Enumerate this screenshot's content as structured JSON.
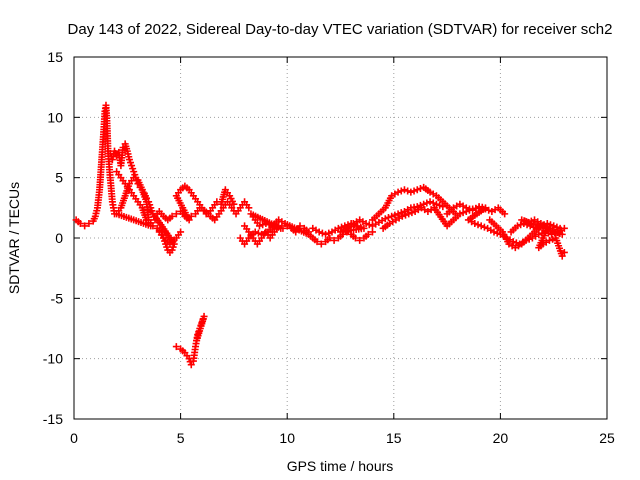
{
  "chart_data": {
    "type": "scatter",
    "title": "Day 143 of 2022, Sidereal Day-to-day VTEC variation (SDTVAR) for receiver sch2",
    "xlabel": "GPS time / hours",
    "ylabel": "SDTVAR / TECUs",
    "xlim": [
      0,
      25
    ],
    "ylim": [
      -15,
      15
    ],
    "xticks": [
      0,
      5,
      10,
      15,
      20,
      25
    ],
    "yticks": [
      -15,
      -10,
      -5,
      0,
      5,
      10,
      15
    ],
    "grid": true,
    "marker": "plus",
    "color": "#ff0000",
    "series": [
      {
        "name": "sch2",
        "points": [
          [
            0.1,
            1.5
          ],
          [
            0.3,
            1.2
          ],
          [
            0.5,
            1.0
          ],
          [
            0.7,
            1.2
          ],
          [
            0.9,
            1.4
          ],
          [
            1.0,
            1.8
          ],
          [
            1.1,
            2.5
          ],
          [
            1.2,
            4.0
          ],
          [
            1.3,
            6.5
          ],
          [
            1.4,
            9.0
          ],
          [
            1.45,
            10.5
          ],
          [
            1.5,
            11.0
          ],
          [
            1.55,
            9.5
          ],
          [
            1.6,
            7.0
          ],
          [
            1.7,
            5.0
          ],
          [
            1.8,
            3.0
          ],
          [
            1.9,
            2.0
          ],
          [
            1.7,
            7.0
          ],
          [
            1.8,
            6.5
          ],
          [
            1.9,
            7.2
          ],
          [
            2.0,
            6.8
          ],
          [
            2.1,
            7.1
          ],
          [
            2.2,
            6.0
          ],
          [
            2.3,
            7.5
          ],
          [
            2.4,
            7.8
          ],
          [
            2.5,
            7.2
          ],
          [
            2.6,
            6.5
          ],
          [
            2.7,
            6.0
          ],
          [
            2.8,
            5.5
          ],
          [
            2.9,
            5.0
          ],
          [
            3.0,
            4.5
          ],
          [
            3.1,
            4.2
          ],
          [
            3.2,
            4.0
          ],
          [
            3.3,
            3.7
          ],
          [
            3.4,
            3.3
          ],
          [
            3.5,
            3.0
          ],
          [
            3.6,
            2.5
          ],
          [
            3.7,
            2.0
          ],
          [
            3.8,
            1.5
          ],
          [
            2.0,
            5.5
          ],
          [
            2.2,
            5.0
          ],
          [
            2.4,
            4.5
          ],
          [
            2.6,
            4.0
          ],
          [
            2.8,
            3.5
          ],
          [
            3.0,
            3.0
          ],
          [
            3.2,
            2.5
          ],
          [
            3.4,
            1.5
          ],
          [
            3.6,
            1.0
          ],
          [
            2.0,
            2.0
          ],
          [
            2.2,
            2.5
          ],
          [
            2.4,
            3.5
          ],
          [
            2.6,
            4.5
          ],
          [
            2.8,
            5.0
          ],
          [
            3.0,
            4.8
          ],
          [
            3.2,
            4.0
          ],
          [
            3.4,
            3.0
          ],
          [
            3.5,
            1.5
          ],
          [
            3.7,
            1.0
          ],
          [
            3.9,
            0.8
          ],
          [
            4.1,
            0.5
          ],
          [
            4.2,
            0.0
          ],
          [
            4.3,
            -0.5
          ],
          [
            4.4,
            -1.0
          ],
          [
            4.5,
            -1.2
          ],
          [
            4.6,
            -1.0
          ],
          [
            4.7,
            -0.5
          ],
          [
            3.8,
            1.8
          ],
          [
            4.0,
            2.2
          ],
          [
            4.2,
            1.8
          ],
          [
            4.4,
            1.5
          ],
          [
            4.6,
            1.8
          ],
          [
            4.8,
            2.0
          ],
          [
            5.0,
            2.2
          ],
          [
            5.2,
            1.8
          ],
          [
            5.4,
            1.5
          ],
          [
            4.8,
            3.5
          ],
          [
            5.0,
            4.0
          ],
          [
            5.2,
            4.3
          ],
          [
            5.4,
            4.0
          ],
          [
            5.6,
            3.5
          ],
          [
            5.8,
            3.0
          ],
          [
            6.0,
            2.5
          ],
          [
            6.2,
            2.0
          ],
          [
            6.4,
            1.8
          ],
          [
            6.6,
            1.5
          ],
          [
            6.8,
            2.0
          ],
          [
            7.0,
            2.5
          ],
          [
            7.2,
            3.0
          ],
          [
            7.4,
            2.5
          ],
          [
            7.6,
            2.0
          ],
          [
            7.8,
            2.5
          ],
          [
            8.0,
            3.0
          ],
          [
            8.2,
            2.5
          ],
          [
            5.5,
            1.8
          ],
          [
            5.7,
            2.0
          ],
          [
            5.9,
            2.5
          ],
          [
            6.1,
            2.3
          ],
          [
            6.3,
            2.0
          ],
          [
            6.5,
            2.5
          ],
          [
            6.7,
            3.0
          ],
          [
            6.9,
            2.8
          ],
          [
            7.1,
            4.0
          ],
          [
            7.3,
            3.5
          ],
          [
            7.5,
            2.8
          ],
          [
            4.0,
            0.5
          ],
          [
            4.2,
            0.0
          ],
          [
            4.5,
            -0.5
          ],
          [
            4.8,
            0.0
          ],
          [
            5.0,
            0.5
          ],
          [
            8.0,
            1.0
          ],
          [
            8.2,
            0.5
          ],
          [
            8.4,
            0.0
          ],
          [
            8.6,
            -0.5
          ],
          [
            8.8,
            0.0
          ],
          [
            9.0,
            0.5
          ],
          [
            9.2,
            0.0
          ],
          [
            9.4,
            0.5
          ],
          [
            9.6,
            1.0
          ],
          [
            9.8,
            0.8
          ],
          [
            10.0,
            1.0
          ],
          [
            10.2,
            0.8
          ],
          [
            10.4,
            0.5
          ],
          [
            10.6,
            1.0
          ],
          [
            10.8,
            0.8
          ],
          [
            11.0,
            0.5
          ],
          [
            7.8,
            0.0
          ],
          [
            8.0,
            -0.5
          ],
          [
            8.2,
            0.0
          ],
          [
            8.5,
            0.5
          ],
          [
            8.8,
            0.3
          ],
          [
            9.1,
            0.5
          ],
          [
            9.4,
            1.0
          ],
          [
            9.7,
            0.8
          ],
          [
            8.3,
            2.0
          ],
          [
            8.5,
            1.5
          ],
          [
            8.7,
            1.0
          ],
          [
            9.0,
            1.2
          ],
          [
            9.3,
            1.0
          ],
          [
            9.6,
            1.5
          ],
          [
            9.9,
            1.2
          ],
          [
            11.0,
            0.3
          ],
          [
            11.2,
            0.0
          ],
          [
            11.4,
            -0.3
          ],
          [
            11.6,
            -0.5
          ],
          [
            11.8,
            -0.3
          ],
          [
            12.0,
            0.0
          ],
          [
            12.2,
            -0.2
          ],
          [
            12.4,
            0.0
          ],
          [
            12.6,
            0.3
          ],
          [
            12.8,
            0.5
          ],
          [
            13.0,
            0.3
          ],
          [
            13.2,
            0.0
          ],
          [
            13.4,
            -0.2
          ],
          [
            13.6,
            0.0
          ],
          [
            13.8,
            0.3
          ],
          [
            14.0,
            0.5
          ],
          [
            11.2,
            0.8
          ],
          [
            11.5,
            0.5
          ],
          [
            11.8,
            0.3
          ],
          [
            12.1,
            0.5
          ],
          [
            12.4,
            0.8
          ],
          [
            12.7,
            1.0
          ],
          [
            13.0,
            1.2
          ],
          [
            13.3,
            1.0
          ],
          [
            13.6,
            0.8
          ],
          [
            12.5,
            0.5
          ],
          [
            12.8,
            0.8
          ],
          [
            13.1,
            1.2
          ],
          [
            13.4,
            1.5
          ],
          [
            13.7,
            1.2
          ],
          [
            14.0,
            1.0
          ],
          [
            14.3,
            1.3
          ],
          [
            14.6,
            1.6
          ],
          [
            14.9,
            1.8
          ],
          [
            15.2,
            2.0
          ],
          [
            15.5,
            2.2
          ],
          [
            15.8,
            2.5
          ],
          [
            16.1,
            2.6
          ],
          [
            16.4,
            2.8
          ],
          [
            16.7,
            3.0
          ],
          [
            17.0,
            2.8
          ],
          [
            17.3,
            2.6
          ],
          [
            14.0,
            1.5
          ],
          [
            14.3,
            2.0
          ],
          [
            14.6,
            2.5
          ],
          [
            14.9,
            3.5
          ],
          [
            15.2,
            3.8
          ],
          [
            15.5,
            4.0
          ],
          [
            15.8,
            3.8
          ],
          [
            16.1,
            4.0
          ],
          [
            16.4,
            4.2
          ],
          [
            16.7,
            3.8
          ],
          [
            17.0,
            3.5
          ],
          [
            17.3,
            3.0
          ],
          [
            17.6,
            2.5
          ],
          [
            17.9,
            2.0
          ],
          [
            14.5,
            0.8
          ],
          [
            14.8,
            1.2
          ],
          [
            15.1,
            1.5
          ],
          [
            15.4,
            1.8
          ],
          [
            15.7,
            2.0
          ],
          [
            16.0,
            2.2
          ],
          [
            16.3,
            2.5
          ],
          [
            16.6,
            2.2
          ],
          [
            16.9,
            2.5
          ],
          [
            17.5,
            1.0
          ],
          [
            17.8,
            1.5
          ],
          [
            18.1,
            2.0
          ],
          [
            18.4,
            2.2
          ],
          [
            18.7,
            2.4
          ],
          [
            19.0,
            2.5
          ],
          [
            19.3,
            2.4
          ],
          [
            19.6,
            2.2
          ],
          [
            19.9,
            2.5
          ],
          [
            20.2,
            2.0
          ],
          [
            17.5,
            2.0
          ],
          [
            17.8,
            2.5
          ],
          [
            18.1,
            2.8
          ],
          [
            18.4,
            2.5
          ],
          [
            18.7,
            2.3
          ],
          [
            19.0,
            2.6
          ],
          [
            19.3,
            2.5
          ],
          [
            18.5,
            1.5
          ],
          [
            18.8,
            1.2
          ],
          [
            19.1,
            1.0
          ],
          [
            19.4,
            0.8
          ],
          [
            19.7,
            0.5
          ],
          [
            20.0,
            0.3
          ],
          [
            20.3,
            0.0
          ],
          [
            20.6,
            -0.3
          ],
          [
            20.9,
            -0.5
          ],
          [
            21.2,
            -0.2
          ],
          [
            21.5,
            0.0
          ],
          [
            21.8,
            0.3
          ],
          [
            22.1,
            0.5
          ],
          [
            22.4,
            0.3
          ],
          [
            22.7,
            0.5
          ],
          [
            23.0,
            0.8
          ],
          [
            19.5,
            1.5
          ],
          [
            19.8,
            1.0
          ],
          [
            20.1,
            0.5
          ],
          [
            20.4,
            -0.5
          ],
          [
            20.7,
            -0.8
          ],
          [
            21.0,
            -0.5
          ],
          [
            21.3,
            0.0
          ],
          [
            21.6,
            0.5
          ],
          [
            21.9,
            1.0
          ],
          [
            22.2,
            1.2
          ],
          [
            22.5,
            1.0
          ],
          [
            22.8,
            0.8
          ],
          [
            20.5,
            0.5
          ],
          [
            20.8,
            1.0
          ],
          [
            21.1,
            1.2
          ],
          [
            21.4,
            1.0
          ],
          [
            21.7,
            0.8
          ],
          [
            22.0,
            1.0
          ],
          [
            22.3,
            0.8
          ],
          [
            22.6,
            0.5
          ],
          [
            22.9,
            0.3
          ],
          [
            21.0,
            1.5
          ],
          [
            21.3,
            1.3
          ],
          [
            21.6,
            1.5
          ],
          [
            21.9,
            1.2
          ],
          [
            22.2,
            0.8
          ],
          [
            21.8,
            -0.8
          ],
          [
            22.0,
            -0.5
          ],
          [
            22.3,
            -0.2
          ],
          [
            22.6,
            0.0
          ],
          [
            22.9,
            -1.5
          ],
          [
            23.0,
            -1.2
          ],
          [
            4.8,
            -9.0
          ],
          [
            5.0,
            -9.2
          ],
          [
            5.2,
            -9.5
          ],
          [
            5.4,
            -10.0
          ],
          [
            5.5,
            -10.5
          ],
          [
            5.6,
            -10.2
          ],
          [
            5.7,
            -9.0
          ],
          [
            5.8,
            -8.0
          ],
          [
            5.9,
            -7.5
          ],
          [
            6.0,
            -7.0
          ],
          [
            6.1,
            -6.5
          ],
          [
            5.75,
            -8.5
          ]
        ]
      }
    ]
  }
}
